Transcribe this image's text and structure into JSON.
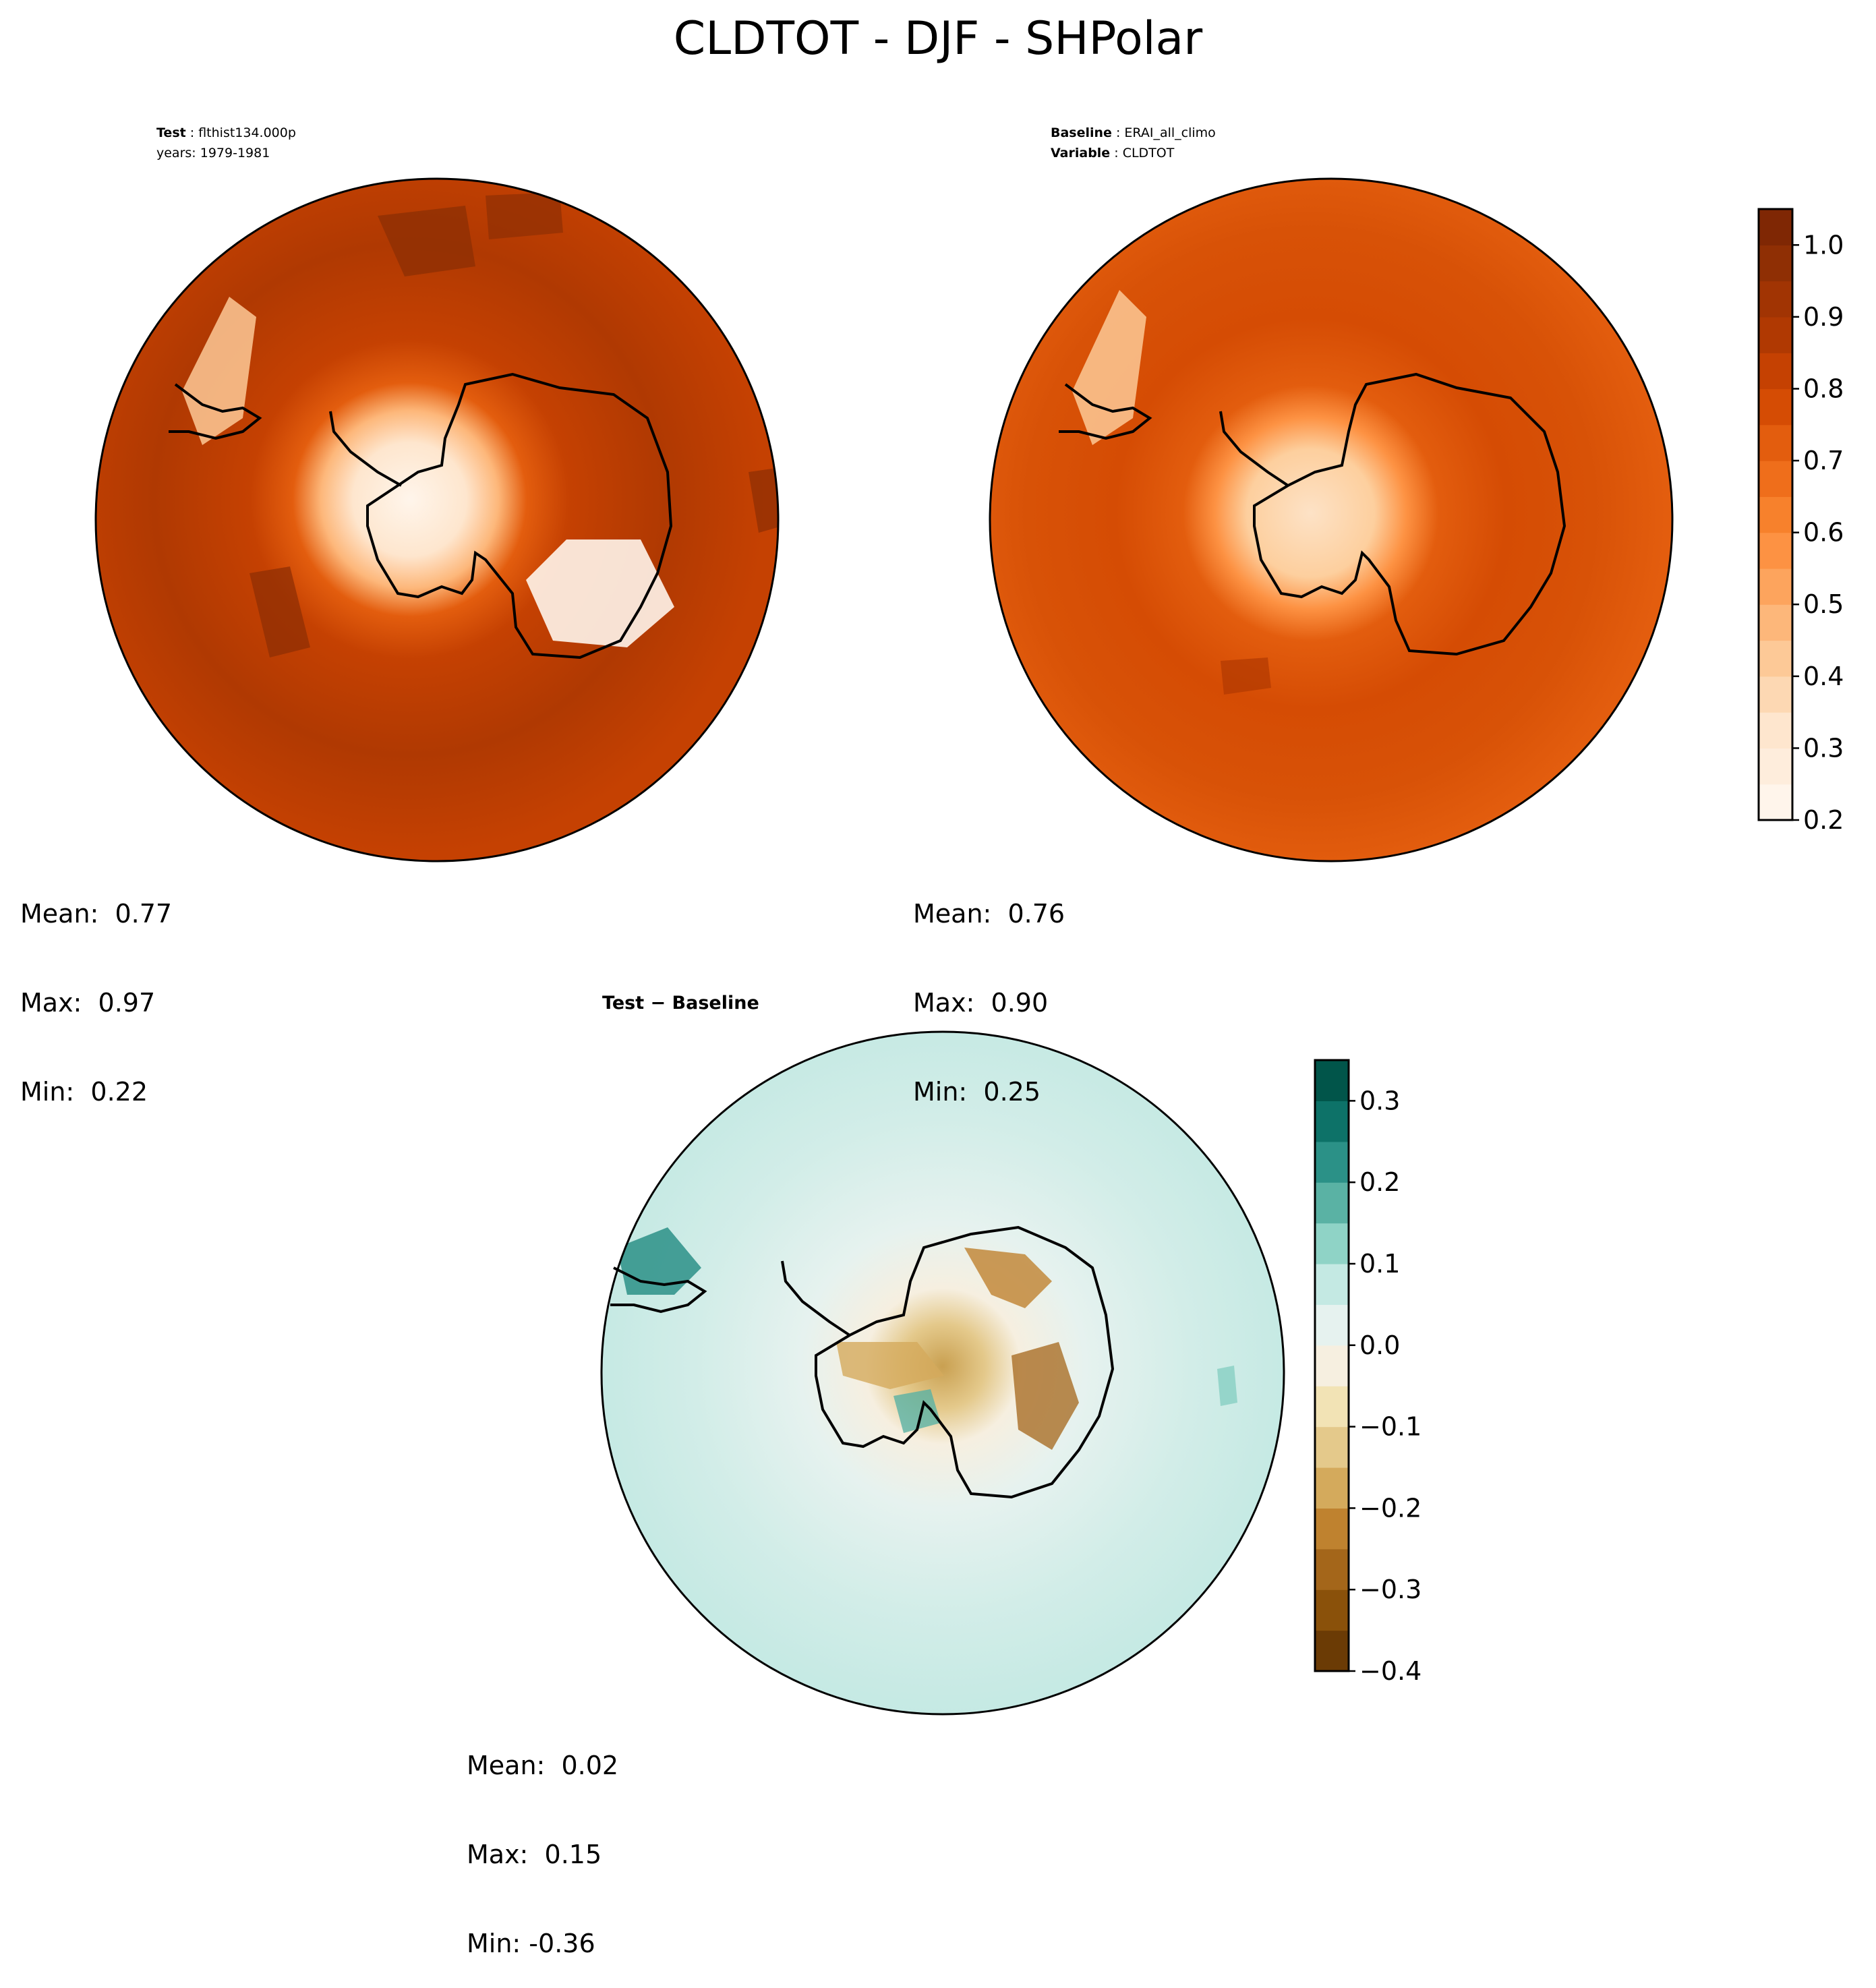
{
  "title": "CLDTOT - DJF - SHPolar",
  "panels": {
    "test": {
      "label_key": "Test",
      "label_val": "flthist134.000p",
      "years": "years: 1979-1981",
      "stats": {
        "mean": "Mean:  0.77",
        "max": "Max:  0.97",
        "min": "Min:  0.22"
      }
    },
    "baseline": {
      "label_key": "Baseline",
      "label_val": "ERAI_all_climo",
      "var_key": "Variable",
      "var_val": "CLDTOT",
      "stats": {
        "mean": "Mean:  0.76",
        "max": "Max:  0.90",
        "min": "Min:  0.25"
      }
    },
    "diff": {
      "title": "Test − Baseline",
      "stats": {
        "mean": "Mean:  0.02",
        "max": "Max:  0.15",
        "min": "Min: -0.36"
      }
    }
  },
  "chart_data": [
    {
      "type": "heatmap",
      "name": "Test",
      "projection": "south-polar-stereographic",
      "variable": "CLDTOT",
      "colormap": "Oranges",
      "mean": 0.77,
      "max": 0.97,
      "min": 0.22,
      "levels": [
        0.2,
        0.25,
        0.3,
        0.35,
        0.4,
        0.45,
        0.5,
        0.55,
        0.6,
        0.65,
        0.7,
        0.75,
        0.8,
        0.85,
        0.9,
        0.95,
        1.0,
        1.05
      ]
    },
    {
      "type": "heatmap",
      "name": "Baseline",
      "projection": "south-polar-stereographic",
      "variable": "CLDTOT",
      "colormap": "Oranges",
      "mean": 0.76,
      "max": 0.9,
      "min": 0.25,
      "levels": [
        0.2,
        0.25,
        0.3,
        0.35,
        0.4,
        0.45,
        0.5,
        0.55,
        0.6,
        0.65,
        0.7,
        0.75,
        0.8,
        0.85,
        0.9,
        0.95,
        1.0,
        1.05
      ]
    },
    {
      "type": "heatmap",
      "name": "Test - Baseline",
      "projection": "south-polar-stereographic",
      "variable": "CLDTOT",
      "colormap": "BrBG",
      "mean": 0.02,
      "max": 0.15,
      "min": -0.36,
      "levels": [
        -0.4,
        -0.35,
        -0.3,
        -0.25,
        -0.2,
        -0.15,
        -0.1,
        -0.05,
        0.0,
        0.05,
        0.1,
        0.15,
        0.2,
        0.25,
        0.3,
        0.35
      ]
    }
  ],
  "colorbars": {
    "main": {
      "min": 0.2,
      "max": 1.05,
      "ticks": [
        0.2,
        0.3,
        0.4,
        0.5,
        0.6,
        0.7,
        0.8,
        0.9,
        1.0
      ],
      "tick_labels": [
        "0.2",
        "0.3",
        "0.4",
        "0.5",
        "0.6",
        "0.7",
        "0.8",
        "0.9",
        "1.0"
      ],
      "colors": [
        "#fff5eb",
        "#feeddc",
        "#fee6ce",
        "#fdd8b3",
        "#fdc997",
        "#fdb77a",
        "#fda45d",
        "#fd9243",
        "#f7812c",
        "#ef6e1b",
        "#e35d0e",
        "#d54c04",
        "#c54102",
        "#b03902",
        "#a13403",
        "#8f2f04",
        "#7f2704"
      ]
    },
    "diff": {
      "min": -0.4,
      "max": 0.35,
      "ticks": [
        -0.4,
        -0.3,
        -0.2,
        -0.1,
        0.0,
        0.1,
        0.2,
        0.3
      ],
      "tick_labels": [
        "−0.4",
        "−0.3",
        "−0.2",
        "−0.1",
        "0.0",
        "0.1",
        "0.2",
        "0.3"
      ],
      "colors": [
        "#6b3b05",
        "#8a510a",
        "#a4661a",
        "#bf822f",
        "#d4aa5c",
        "#e4c98b",
        "#f2e3b5",
        "#f6efe0",
        "#e6f2ef",
        "#c4e9e3",
        "#8fd3c6",
        "#5ab2a4",
        "#2b9187",
        "#0d7268",
        "#01554a"
      ]
    }
  }
}
